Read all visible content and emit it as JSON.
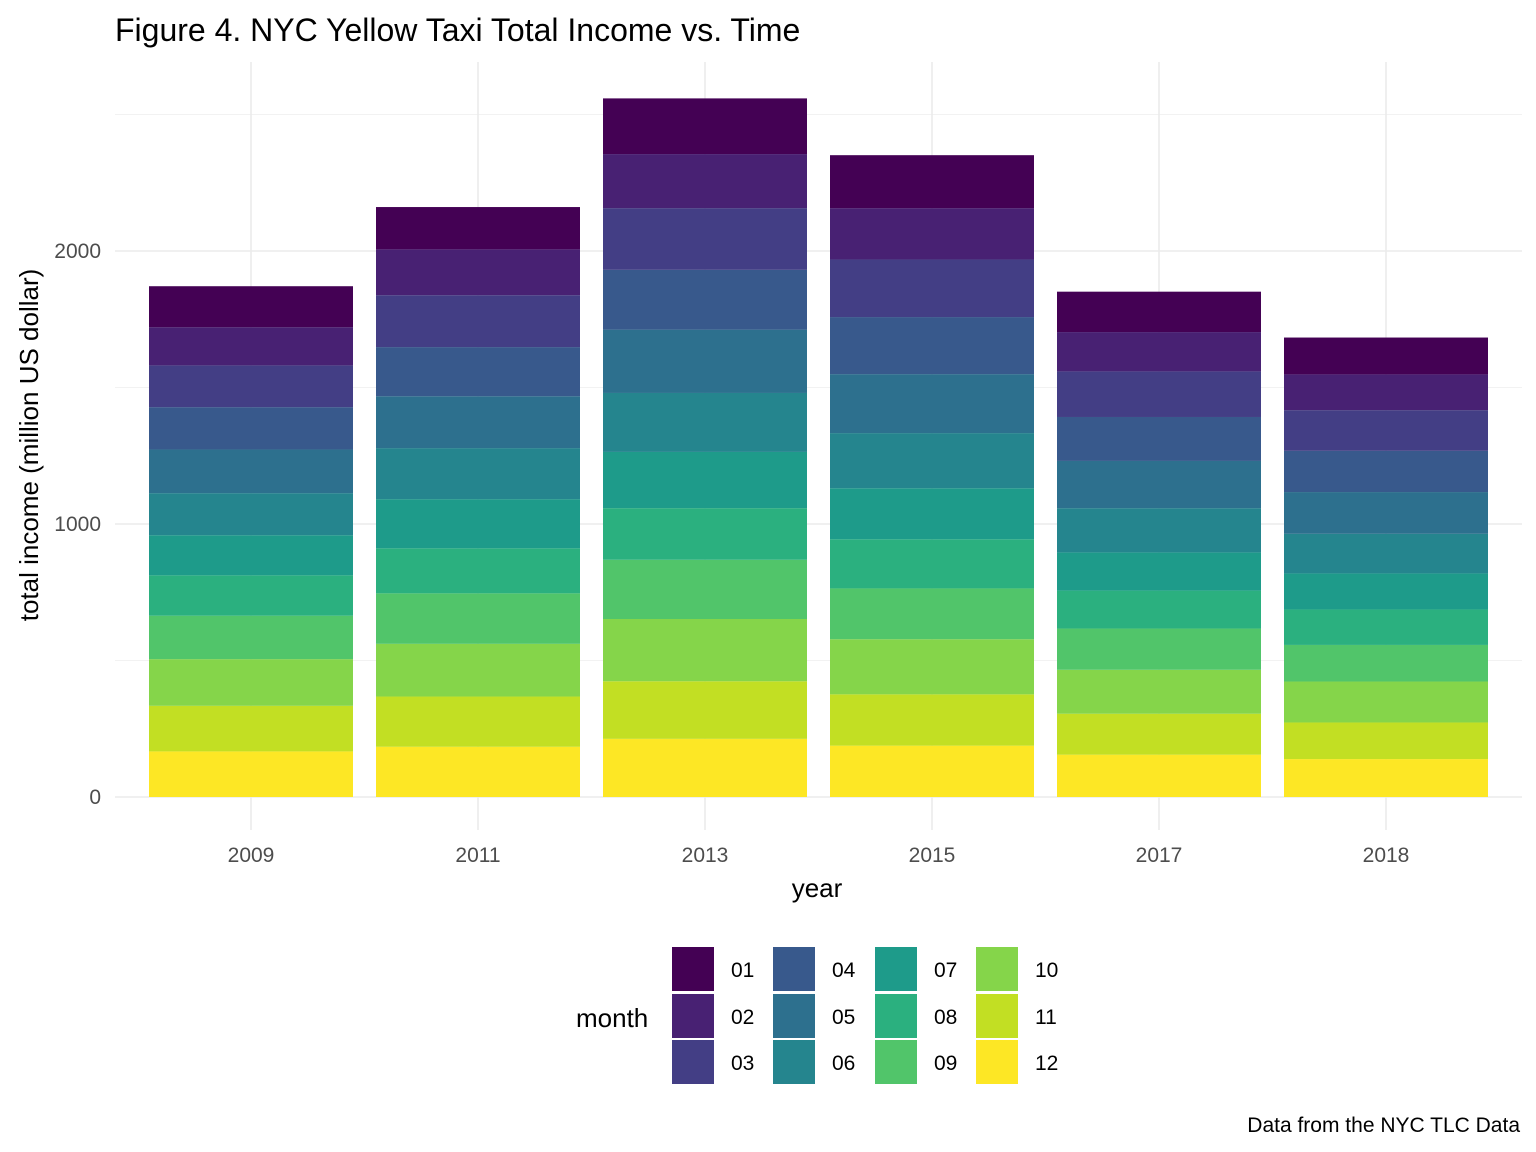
{
  "chart_data": {
    "type": "bar",
    "stacked": true,
    "title": "Figure 4. NYC Yellow Taxi Total Income vs. Time",
    "xlabel": "year",
    "ylabel": "total income (million US dollar)",
    "caption": "Data from the NYC TLC Data",
    "categories": [
      "2009",
      "2011",
      "2013",
      "2015",
      "2017",
      "2018"
    ],
    "ylim": [
      0,
      2500
    ],
    "yticks": [
      0,
      1000,
      2000
    ],
    "grid": true,
    "legend": {
      "title": "month",
      "position": "bottom",
      "order": [
        "01",
        "02",
        "03",
        "04",
        "05",
        "06",
        "07",
        "08",
        "09",
        "10",
        "11",
        "12"
      ]
    },
    "stack_order_bottom_to_top": [
      "12",
      "11",
      "10",
      "09",
      "08",
      "07",
      "06",
      "05",
      "04",
      "03",
      "02",
      "01"
    ],
    "series": [
      {
        "name": "01",
        "color": "#440154",
        "values": [
          150,
          155,
          204,
          194,
          148,
          135
        ]
      },
      {
        "name": "02",
        "color": "#482173",
        "values": [
          140,
          168,
          198,
          188,
          144,
          131
        ]
      },
      {
        "name": "03",
        "color": "#433E85",
        "values": [
          153,
          190,
          226,
          211,
          167,
          149
        ]
      },
      {
        "name": "04",
        "color": "#38598C",
        "values": [
          155,
          180,
          219,
          209,
          161,
          151
        ]
      },
      {
        "name": "05",
        "color": "#2D708E",
        "values": [
          160,
          190,
          232,
          216,
          173,
          153
        ]
      },
      {
        "name": "06",
        "color": "#25858E",
        "values": [
          154,
          187,
          216,
          202,
          162,
          145
        ]
      },
      {
        "name": "07",
        "color": "#1E9B8A",
        "values": [
          147,
          180,
          206,
          187,
          140,
          132
        ]
      },
      {
        "name": "08",
        "color": "#2BB07F",
        "values": [
          148,
          165,
          189,
          180,
          139,
          130
        ]
      },
      {
        "name": "09",
        "color": "#51C56A",
        "values": [
          159,
          185,
          217,
          186,
          151,
          134
        ]
      },
      {
        "name": "10",
        "color": "#85D54A",
        "values": [
          171,
          193,
          228,
          202,
          161,
          150
        ]
      },
      {
        "name": "11",
        "color": "#C2DF23",
        "values": [
          167,
          184,
          211,
          188,
          150,
          134
        ]
      },
      {
        "name": "12",
        "color": "#FDE725",
        "values": [
          167,
          184,
          213,
          188,
          155,
          139
        ]
      }
    ]
  }
}
